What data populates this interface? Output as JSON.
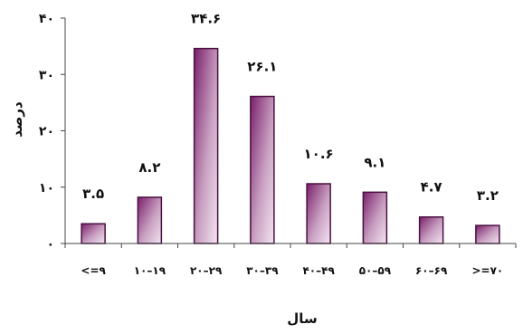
{
  "chart_data": {
    "type": "bar",
    "title": "",
    "xlabel": "سال",
    "ylabel": "درصد",
    "categories": [
      "<=۹",
      "۱۰–۱۹",
      "۲۰–۲۹",
      "۳۰–۳۹",
      "۴۰–۴۹",
      "۵۰–۵۹",
      "۶۰–۶۹",
      ">=۷۰"
    ],
    "values": [
      3.5,
      8.2,
      34.6,
      26.1,
      10.6,
      9.1,
      4.7,
      3.2
    ],
    "value_labels": [
      "۳.۵",
      "۸.۲",
      "۳۴.۶",
      "۲۶.۱",
      "۱۰.۶",
      "۹.۱",
      "۴.۷",
      "۳.۲"
    ],
    "yticks": [
      0,
      10,
      20,
      30,
      40
    ],
    "ytick_labels": [
      "۰",
      "۱۰",
      "۲۰",
      "۳۰",
      "۴۰"
    ],
    "ylim": [
      0,
      40
    ],
    "grid": false,
    "legend": "none",
    "colors": {
      "bar_dark": "#7a1f6a",
      "bar_light": "#f3e6f1",
      "bar_edge": "#4a0f40",
      "axis": "#444444"
    }
  }
}
